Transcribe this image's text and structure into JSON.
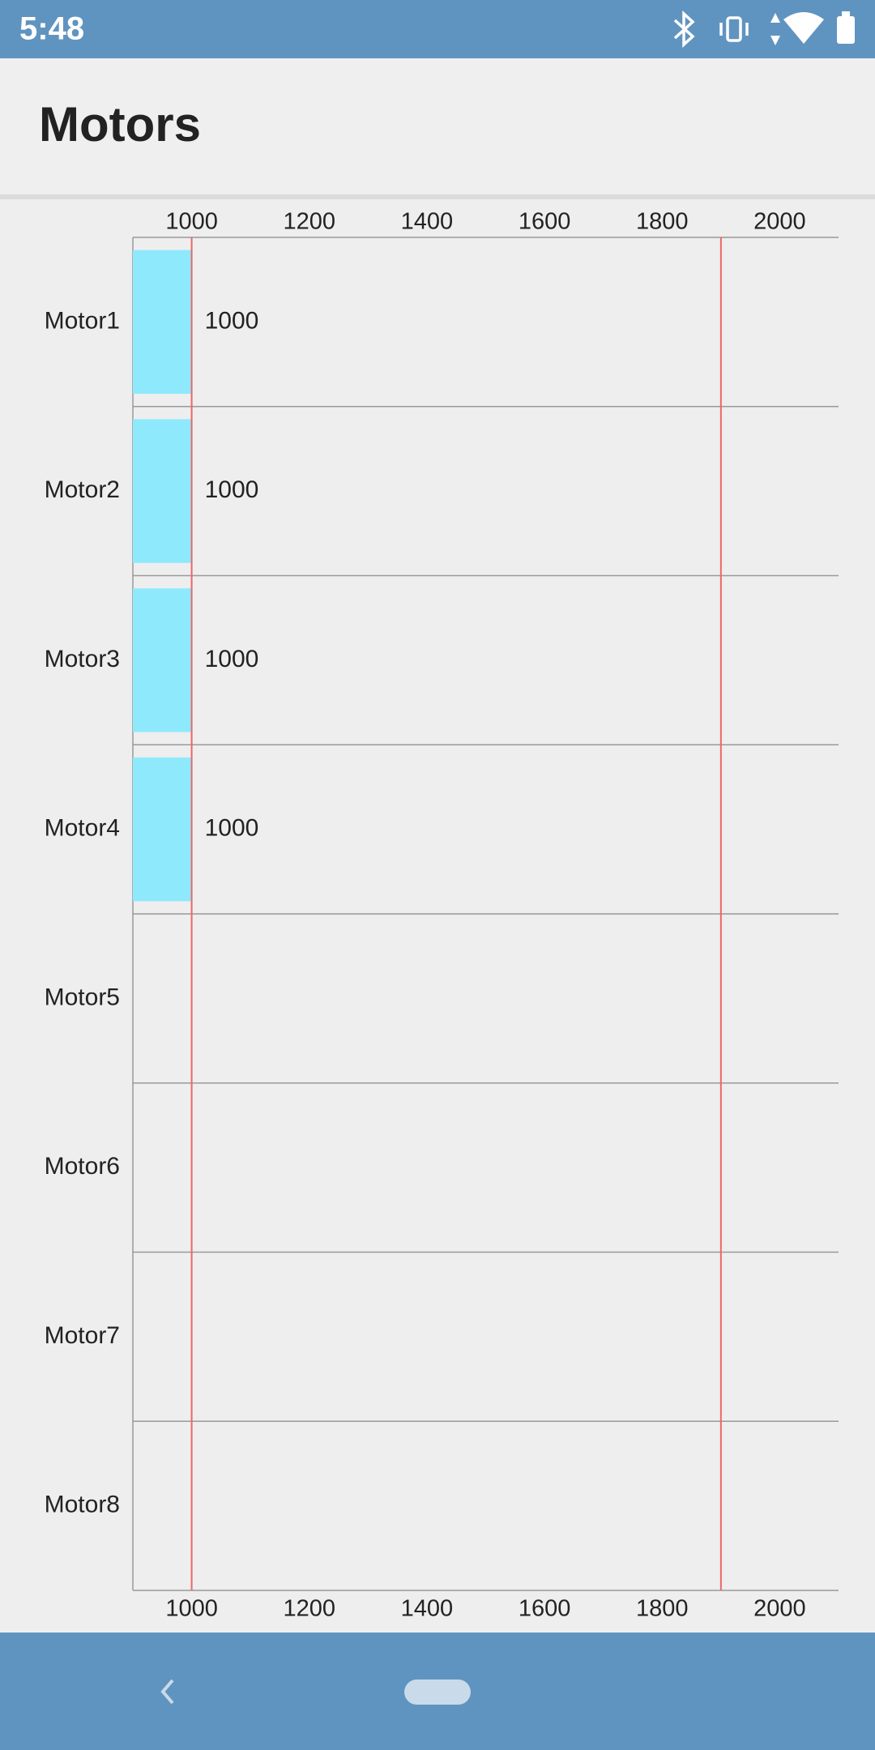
{
  "status_bar": {
    "time": "5:48"
  },
  "app_bar": {
    "title": "Motors"
  },
  "chart_data": {
    "type": "hbar",
    "categories": [
      "Motor1",
      "Motor2",
      "Motor3",
      "Motor4",
      "Motor5",
      "Motor6",
      "Motor7",
      "Motor8"
    ],
    "values": [
      1000,
      1000,
      1000,
      1000,
      null,
      null,
      null,
      null
    ],
    "color": "#8fe9fc",
    "xlim": [
      900,
      2100
    ],
    "xticks": [
      1000,
      1200,
      1400,
      1600,
      1800,
      2000
    ],
    "limit_lines": [
      1000,
      1900
    ],
    "limit_color": "#ee6666"
  }
}
